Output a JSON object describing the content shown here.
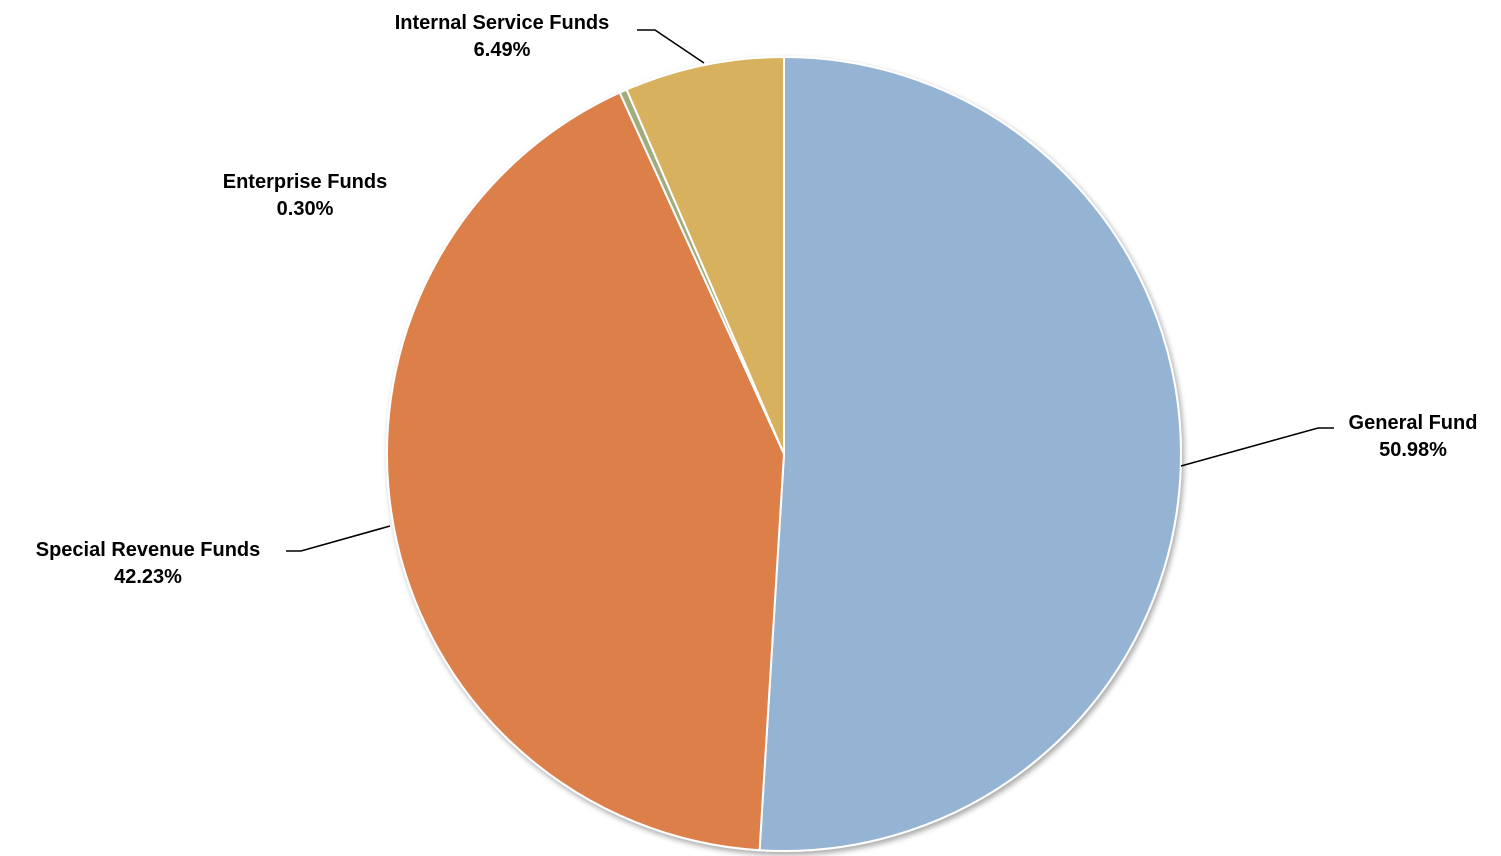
{
  "chart_data": {
    "type": "pie",
    "slices": [
      {
        "label": "General Fund",
        "value": 50.98,
        "value_label": "50.98%",
        "color": "#95B3D2"
      },
      {
        "label": "Special Revenue Funds",
        "value": 42.23,
        "value_label": "42.23%",
        "color": "#DC7F49"
      },
      {
        "label": "Enterprise Funds",
        "value": 0.3,
        "value_label": "0.30%",
        "color": "#A1AC7D"
      },
      {
        "label": "Internal Service Funds",
        "value": 6.49,
        "value_label": "6.49%",
        "color": "#D8B15F"
      }
    ],
    "start_angle": "12 o'clock",
    "direction": "clockwise",
    "legend": "none"
  }
}
